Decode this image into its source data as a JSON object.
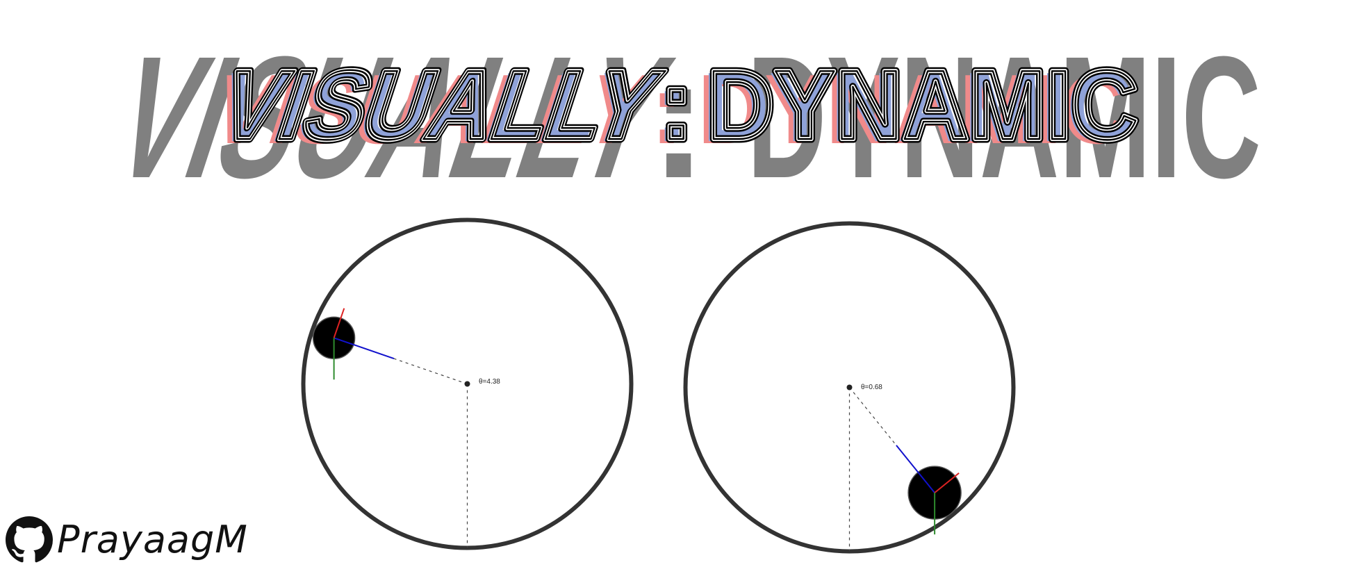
{
  "title": {
    "left": "VISUALLY",
    "separator": ":",
    "right": "DYNAMIC"
  },
  "pendulums": [
    {
      "theta_text": "θ=4.38",
      "theta": 4.38,
      "colors": {
        "velocity": "#1111cc",
        "up": "#dd2222",
        "gravity": "#2e8b2e"
      }
    },
    {
      "theta_text": "θ=0.68",
      "theta": 0.68,
      "colors": {
        "velocity": "#1111cc",
        "up": "#dd2222",
        "gravity": "#2e8b2e"
      }
    }
  ],
  "github": {
    "icon": "github-octocat-icon",
    "username": "PrayaagM"
  },
  "colors": {
    "background_title": "#808080",
    "shadow_red": "#f08a8a",
    "shadow_blue": "#8fa2d8",
    "outline": "#000000",
    "ring": "#333333"
  }
}
